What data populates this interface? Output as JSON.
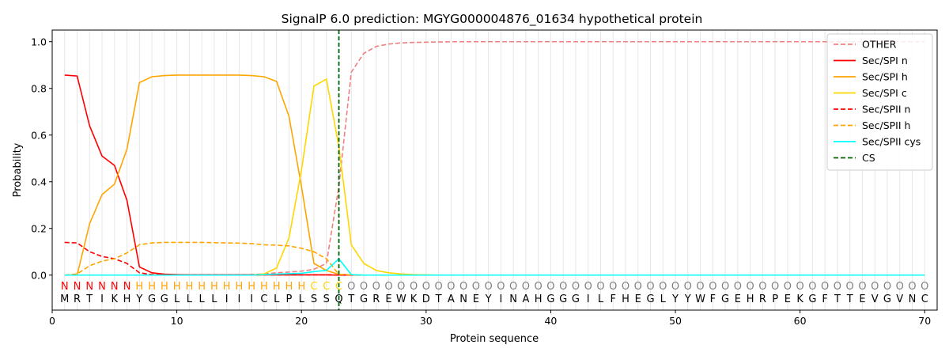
{
  "chart_data": {
    "type": "line",
    "title": "SignalP 6.0 prediction: MGYG000004876_01634 hypothetical protein",
    "xlabel": "Protein sequence",
    "ylabel": "Probability",
    "xlim": [
      0,
      71
    ],
    "ylim": [
      -0.15,
      1.05
    ],
    "xticks": [
      0,
      10,
      20,
      30,
      40,
      50,
      60,
      70
    ],
    "yticks": [
      0.0,
      0.2,
      0.4,
      0.6,
      0.8,
      1.0
    ],
    "grid": "vertical lines at each residue",
    "legend_position": "top-right",
    "cleavage_site": 23,
    "sequence": [
      "M",
      "R",
      "T",
      "I",
      "K",
      "H",
      "Y",
      "G",
      "G",
      "L",
      "L",
      "L",
      "L",
      "I",
      "I",
      "I",
      "C",
      "L",
      "P",
      "L",
      "S",
      "S",
      "Q",
      "T",
      "G",
      "R",
      "E",
      "W",
      "K",
      "D",
      "T",
      "A",
      "N",
      "E",
      "Y",
      "I",
      "N",
      "A",
      "H",
      "G",
      "G",
      "G",
      "I",
      "L",
      "F",
      "H",
      "E",
      "G",
      "L",
      "Y",
      "Y",
      "W",
      "F",
      "G",
      "E",
      "H",
      "R",
      "P",
      "E",
      "K",
      "G",
      "F",
      "T",
      "T",
      "E",
      "V",
      "G",
      "V",
      "N",
      "C"
    ],
    "region_labels": [
      "N",
      "N",
      "N",
      "N",
      "N",
      "N",
      "H",
      "H",
      "H",
      "H",
      "H",
      "H",
      "H",
      "H",
      "H",
      "H",
      "H",
      "H",
      "H",
      "H",
      "C",
      "C",
      "C",
      "O",
      "O",
      "O",
      "O",
      "O",
      "O",
      "O",
      "O",
      "O",
      "O",
      "O",
      "O",
      "O",
      "O",
      "O",
      "O",
      "O",
      "O",
      "O",
      "O",
      "O",
      "O",
      "O",
      "O",
      "O",
      "O",
      "O",
      "O",
      "O",
      "O",
      "O",
      "O",
      "O",
      "O",
      "O",
      "O",
      "O",
      "O",
      "O",
      "O",
      "O",
      "O",
      "O",
      "O",
      "O",
      "O",
      "O"
    ],
    "region_colors": {
      "N": "#ff0000",
      "H": "#ffa500",
      "C": "#ffd700",
      "O": "#808080"
    },
    "series": [
      {
        "name": "OTHER",
        "color": "#f08080",
        "dash": "dashed",
        "values": [
          0.0,
          0.0,
          0.0,
          0.0,
          0.0,
          0.0,
          0.0,
          0.0,
          0.0,
          0.0,
          0.0,
          0.0,
          0.0,
          0.0,
          0.0,
          0.002,
          0.005,
          0.01,
          0.013,
          0.017,
          0.025,
          0.05,
          0.38,
          0.87,
          0.95,
          0.98,
          0.99,
          0.995,
          0.997,
          0.998,
          0.999,
          1,
          1,
          1,
          1,
          1,
          1,
          1,
          1,
          1,
          1,
          1,
          1,
          1,
          1,
          1,
          1,
          1,
          1,
          1,
          1,
          1,
          1,
          1,
          1,
          1,
          1,
          1,
          1,
          1,
          1,
          1,
          1,
          1,
          1,
          1,
          1,
          1,
          1,
          1
        ]
      },
      {
        "name": "Sec/SPI n",
        "color": "#ff0000",
        "dash": "solid",
        "values": [
          0.857,
          0.853,
          0.64,
          0.51,
          0.47,
          0.32,
          0.035,
          0.01,
          0.004,
          0.002,
          0.001,
          0.001,
          0.001,
          0.001,
          0.001,
          0.001,
          0.001,
          0.001,
          0.001,
          0.001,
          0.001,
          0.001,
          0,
          0,
          0,
          0,
          0,
          0,
          0,
          0,
          0,
          0,
          0,
          0,
          0,
          0,
          0,
          0,
          0,
          0,
          0,
          0,
          0,
          0,
          0,
          0,
          0,
          0,
          0,
          0,
          0,
          0,
          0,
          0,
          0,
          0,
          0,
          0,
          0,
          0,
          0,
          0,
          0,
          0,
          0,
          0,
          0,
          0,
          0,
          0
        ]
      },
      {
        "name": "Sec/SPI h",
        "color": "#ffa500",
        "dash": "solid",
        "values": [
          0.0,
          0.0,
          0.22,
          0.345,
          0.39,
          0.54,
          0.825,
          0.85,
          0.855,
          0.857,
          0.857,
          0.857,
          0.857,
          0.857,
          0.857,
          0.855,
          0.85,
          0.83,
          0.68,
          0.38,
          0.05,
          0.02,
          0.003,
          0.001,
          0,
          0,
          0,
          0,
          0,
          0,
          0,
          0,
          0,
          0,
          0,
          0,
          0,
          0,
          0,
          0,
          0,
          0,
          0,
          0,
          0,
          0,
          0,
          0,
          0,
          0,
          0,
          0,
          0,
          0,
          0,
          0,
          0,
          0,
          0,
          0,
          0,
          0,
          0,
          0,
          0,
          0,
          0,
          0,
          0,
          0
        ]
      },
      {
        "name": "Sec/SPI c",
        "color": "#ffd700",
        "dash": "solid",
        "values": [
          0,
          0,
          0,
          0,
          0,
          0,
          0,
          0,
          0,
          0,
          0,
          0,
          0,
          0,
          0,
          0,
          0.005,
          0.03,
          0.16,
          0.45,
          0.81,
          0.84,
          0.55,
          0.13,
          0.05,
          0.02,
          0.01,
          0.005,
          0.002,
          0.001,
          0,
          0,
          0,
          0,
          0,
          0,
          0,
          0,
          0,
          0,
          0,
          0,
          0,
          0,
          0,
          0,
          0,
          0,
          0,
          0,
          0,
          0,
          0,
          0,
          0,
          0,
          0,
          0,
          0,
          0,
          0,
          0,
          0,
          0,
          0,
          0,
          0,
          0,
          0,
          0
        ]
      },
      {
        "name": "Sec/SPII n",
        "color": "#ff0000",
        "dash": "dashed",
        "values": [
          0.14,
          0.138,
          0.1,
          0.08,
          0.07,
          0.05,
          0.01,
          0.002,
          0.001,
          0.001,
          0.001,
          0.001,
          0.001,
          0.001,
          0.001,
          0.001,
          0.001,
          0.001,
          0.001,
          0.001,
          0.001,
          0.001,
          0,
          0,
          0,
          0,
          0,
          0,
          0,
          0,
          0,
          0,
          0,
          0,
          0,
          0,
          0,
          0,
          0,
          0,
          0,
          0,
          0,
          0,
          0,
          0,
          0,
          0,
          0,
          0,
          0,
          0,
          0,
          0,
          0,
          0,
          0,
          0,
          0,
          0,
          0,
          0,
          0,
          0,
          0,
          0,
          0,
          0,
          0,
          0
        ]
      },
      {
        "name": "Sec/SPII h",
        "color": "#ffa500",
        "dash": "dashed",
        "values": [
          0.0,
          0.005,
          0.04,
          0.06,
          0.07,
          0.095,
          0.13,
          0.138,
          0.14,
          0.14,
          0.14,
          0.14,
          0.139,
          0.138,
          0.137,
          0.135,
          0.13,
          0.128,
          0.125,
          0.115,
          0.1,
          0.07,
          0.003,
          0.001,
          0,
          0,
          0,
          0,
          0,
          0,
          0,
          0,
          0,
          0,
          0,
          0,
          0,
          0,
          0,
          0,
          0,
          0,
          0,
          0,
          0,
          0,
          0,
          0,
          0,
          0,
          0,
          0,
          0,
          0,
          0,
          0,
          0,
          0,
          0,
          0,
          0,
          0,
          0,
          0,
          0,
          0,
          0,
          0,
          0,
          0
        ]
      },
      {
        "name": "Sec/SPII cys",
        "color": "#00ffff",
        "dash": "solid",
        "values": [
          0,
          0,
          0,
          0,
          0,
          0,
          0,
          0,
          0,
          0,
          0,
          0,
          0,
          0,
          0,
          0,
          0.002,
          0.004,
          0.006,
          0.008,
          0.015,
          0.02,
          0.07,
          0.002,
          0,
          0,
          0,
          0,
          0,
          0,
          0,
          0,
          0,
          0,
          0,
          0,
          0,
          0,
          0,
          0,
          0,
          0,
          0,
          0,
          0,
          0,
          0,
          0,
          0,
          0,
          0,
          0,
          0,
          0,
          0,
          0,
          0,
          0,
          0,
          0,
          0,
          0,
          0,
          0,
          0,
          0,
          0,
          0,
          0,
          0
        ]
      }
    ],
    "legend": [
      {
        "label": "OTHER",
        "color": "#f08080",
        "dash": "dashed"
      },
      {
        "label": "Sec/SPI n",
        "color": "#ff0000",
        "dash": "solid"
      },
      {
        "label": "Sec/SPI h",
        "color": "#ffa500",
        "dash": "solid"
      },
      {
        "label": "Sec/SPI c",
        "color": "#ffd700",
        "dash": "solid"
      },
      {
        "label": "Sec/SPII n",
        "color": "#ff0000",
        "dash": "dashed"
      },
      {
        "label": "Sec/SPII h",
        "color": "#ffa500",
        "dash": "dashed"
      },
      {
        "label": "Sec/SPII cys",
        "color": "#00ffff",
        "dash": "solid"
      },
      {
        "label": "CS",
        "color": "#006400",
        "dash": "dashed"
      }
    ]
  }
}
